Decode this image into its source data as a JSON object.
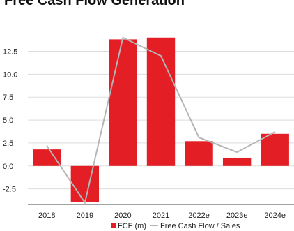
{
  "title": "Free Cash Flow Generation",
  "colors": {
    "bar": "#e31e24",
    "line": "#b5b5b5",
    "grid": "#dddddd",
    "axis": "#444444"
  },
  "chart_data": {
    "type": "bar",
    "title": "Free Cash Flow Generation",
    "categories": [
      "2018",
      "2019",
      "2020",
      "2021",
      "2022e",
      "2023e",
      "2024e"
    ],
    "series": [
      {
        "name": "FCF (m)",
        "type": "bar",
        "values": [
          1.8,
          -3.9,
          13.8,
          14.0,
          2.7,
          0.9,
          3.5
        ]
      },
      {
        "name": "Free Cash Flow / Sales",
        "type": "line",
        "values": [
          2.2,
          -4.0,
          14.0,
          12.0,
          3.1,
          1.5,
          3.7
        ]
      }
    ],
    "y_ticks": [
      "12.5",
      "10.0",
      "7.5",
      "5.0",
      "2.5",
      "0.0",
      "-2.5"
    ],
    "ylim": [
      -4.2,
      15.2
    ],
    "grid": true,
    "legend": "bottom"
  }
}
